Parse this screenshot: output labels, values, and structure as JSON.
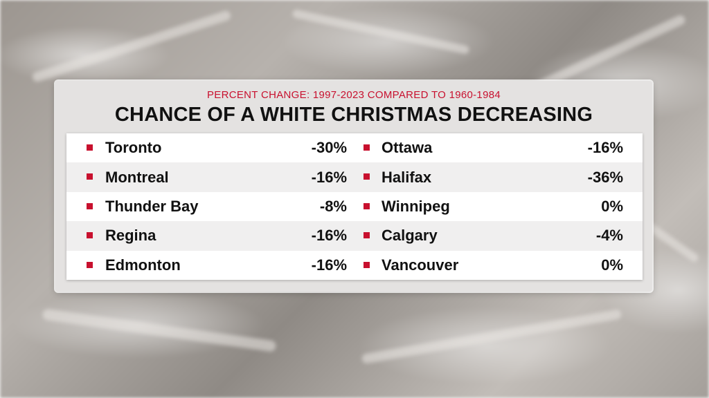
{
  "subtitle": "PERCENT CHANGE: 1997-2023 COMPARED TO 1960-1984",
  "title": "CHANCE OF A WHITE CHRISTMAS DECREASING",
  "accent_color": "#c8102e",
  "left_column": [
    {
      "city": "Toronto",
      "change": "-30%"
    },
    {
      "city": "Montreal",
      "change": "-16%"
    },
    {
      "city": "Thunder Bay",
      "change": "-8%"
    },
    {
      "city": "Regina",
      "change": "-16%"
    },
    {
      "city": "Edmonton",
      "change": "-16%"
    }
  ],
  "right_column": [
    {
      "city": "Ottawa",
      "change": "-16%"
    },
    {
      "city": "Halifax",
      "change": "-36%"
    },
    {
      "city": "Winnipeg",
      "change": "0%"
    },
    {
      "city": "Calgary",
      "change": "-4%"
    },
    {
      "city": "Vancouver",
      "change": "0%"
    }
  ]
}
